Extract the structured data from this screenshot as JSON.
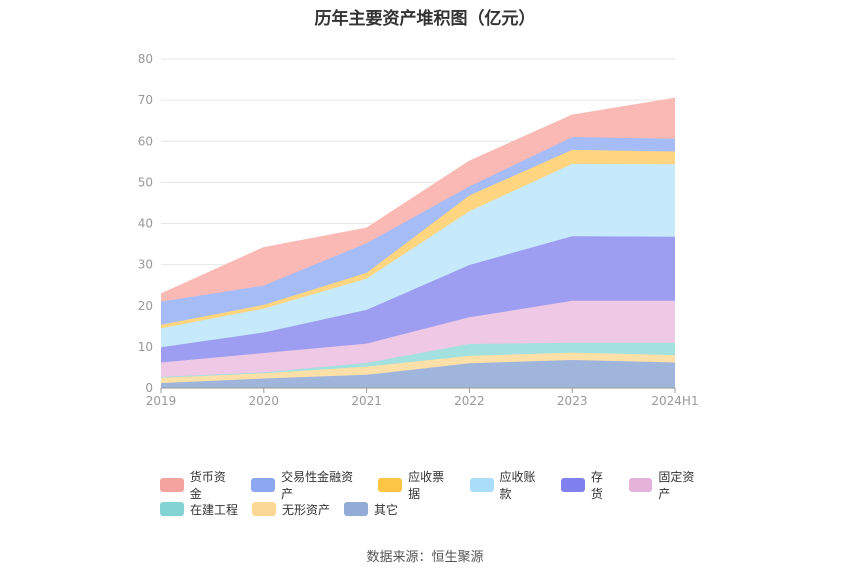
{
  "chart_data": {
    "type": "area",
    "stacked": true,
    "title": "历年主要资产堆积图（亿元）",
    "x": [
      "2019",
      "2020",
      "2021",
      "2022",
      "2023",
      "2024H1"
    ],
    "yticks": [
      "0",
      "10",
      "20",
      "30",
      "40",
      "50",
      "60",
      "70",
      "80"
    ],
    "ylim": [
      0,
      80
    ],
    "grid": true,
    "legend_position": "bottom",
    "series": [
      {
        "name": "其它",
        "color": "#9fb5dc",
        "values": [
          1.2,
          2.3,
          3.2,
          6.0,
          6.8,
          6.2
        ]
      },
      {
        "name": "无形资产",
        "color": "#fde0a8",
        "values": [
          1.3,
          1.3,
          2.0,
          1.8,
          1.8,
          1.8
        ]
      },
      {
        "name": "在建工程",
        "color": "#a3e0e0",
        "values": [
          0.2,
          0.2,
          0.9,
          2.9,
          2.4,
          3.0
        ]
      },
      {
        "name": "固定资产",
        "color": "#eec8e4",
        "values": [
          3.5,
          4.7,
          4.7,
          6.5,
          10.2,
          10.2
        ]
      },
      {
        "name": "存货",
        "color": "#9d9ef2",
        "values": [
          3.7,
          5.0,
          8.2,
          12.7,
          15.7,
          15.6
        ]
      },
      {
        "name": "应收账款",
        "color": "#c6e9fb",
        "values": [
          4.6,
          5.8,
          7.6,
          13.1,
          17.6,
          17.6
        ]
      },
      {
        "name": "应收票据",
        "color": "#ffd580",
        "values": [
          0.9,
          0.9,
          1.4,
          3.8,
          3.4,
          3.1
        ]
      },
      {
        "name": "交易性金融资产",
        "color": "#a6bcf7",
        "values": [
          5.6,
          4.7,
          7.2,
          2.2,
          3.1,
          3.1
        ]
      },
      {
        "name": "货币资金",
        "color": "#fab9b4",
        "values": [
          1.8,
          9.2,
          3.6,
          6.1,
          5.3,
          9.8
        ]
      }
    ],
    "legend": [
      {
        "name": "货币资金",
        "color": "#f5a39e"
      },
      {
        "name": "交易性金融资产",
        "color": "#8da8f3"
      },
      {
        "name": "应收票据",
        "color": "#fcc544"
      },
      {
        "name": "应收账款",
        "color": "#a9ddf8"
      },
      {
        "name": "存货",
        "color": "#8080ef"
      },
      {
        "name": "固定资产",
        "color": "#e5b3da"
      },
      {
        "name": "在建工程",
        "color": "#83d3d3"
      },
      {
        "name": "无形资产",
        "color": "#fcd897"
      },
      {
        "name": "其它",
        "color": "#93acd7"
      }
    ]
  },
  "source": "数据来源：恒生聚源"
}
